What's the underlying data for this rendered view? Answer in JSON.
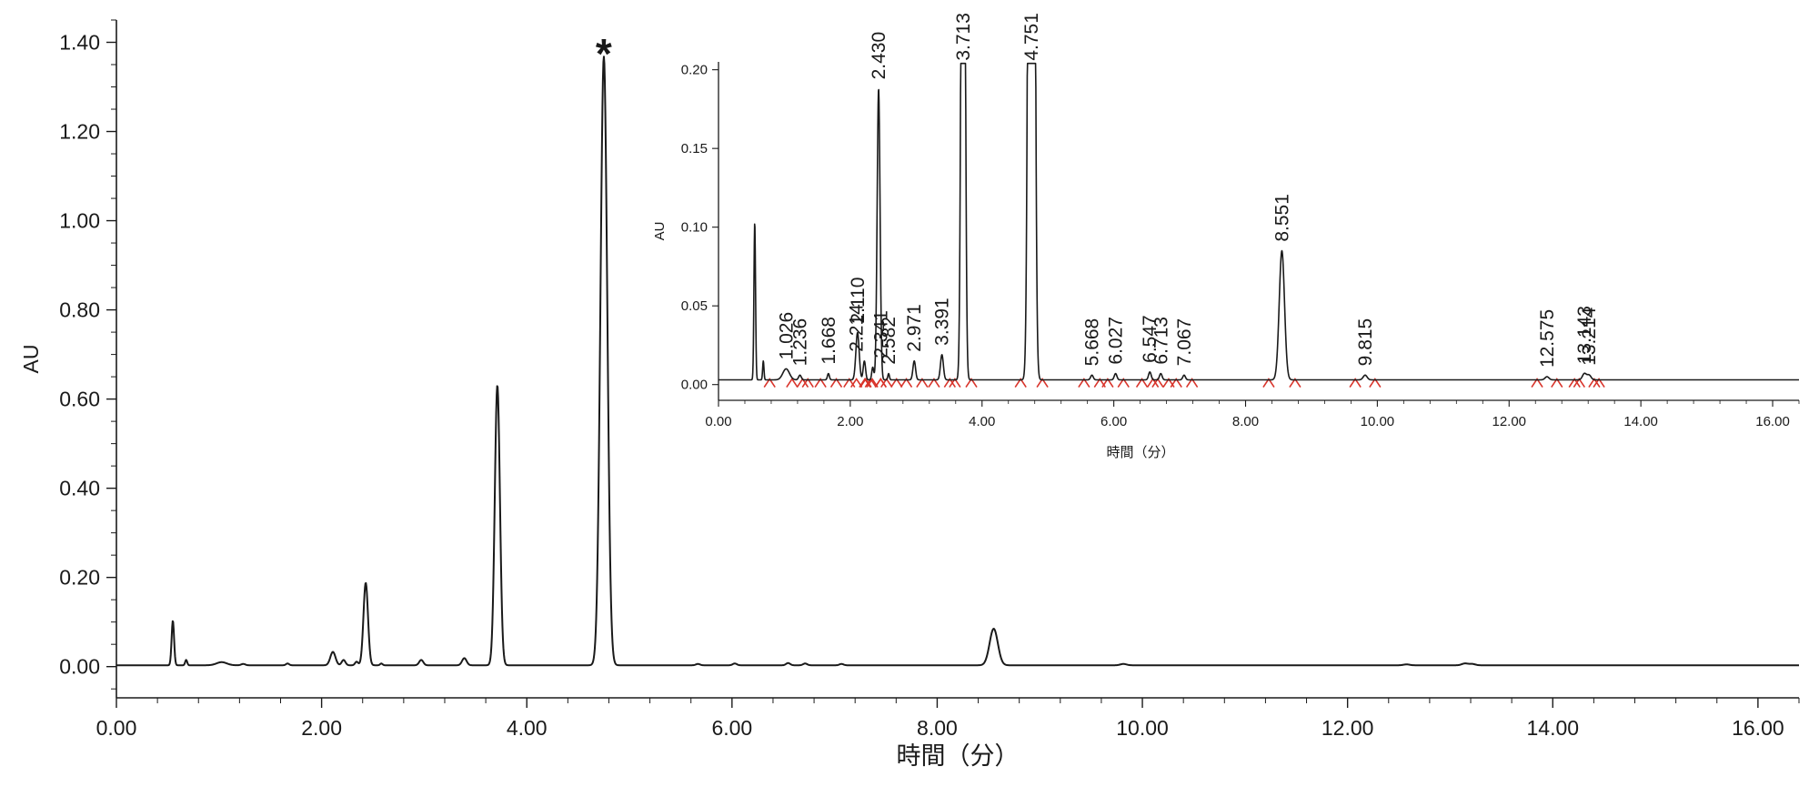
{
  "chart_data": [
    {
      "type": "line",
      "xlabel": "時間（分）",
      "ylabel": "AU",
      "xlim": [
        0,
        16.4
      ],
      "ylim": [
        -0.07,
        1.45
      ],
      "xticks": [
        "0.00",
        "2.00",
        "4.00",
        "6.00",
        "8.00",
        "10.00",
        "12.00",
        "14.00",
        "16.00"
      ],
      "yticks": [
        "0.00",
        "0.20",
        "0.40",
        "0.60",
        "0.80",
        "1.00",
        "1.20",
        "1.40"
      ],
      "grid": false,
      "annotations": [
        {
          "text": "*",
          "x": 4.75,
          "y": 1.37
        }
      ],
      "baseline": 0.003,
      "peaks": [
        {
          "rt": 0.55,
          "height": 0.1,
          "width": 0.012
        },
        {
          "rt": 0.68,
          "height": 0.012,
          "width": 0.01
        },
        {
          "rt": 1.026,
          "height": 0.007,
          "width": 0.05
        },
        {
          "rt": 1.236,
          "height": 0.003,
          "width": 0.02
        },
        {
          "rt": 1.668,
          "height": 0.004,
          "width": 0.015
        },
        {
          "rt": 2.11,
          "height": 0.03,
          "width": 0.025
        },
        {
          "rt": 2.214,
          "height": 0.012,
          "width": 0.018
        },
        {
          "rt": 2.341,
          "height": 0.008,
          "width": 0.015
        },
        {
          "rt": 2.43,
          "height": 0.185,
          "width": 0.022
        },
        {
          "rt": 2.582,
          "height": 0.004,
          "width": 0.012
        },
        {
          "rt": 2.971,
          "height": 0.012,
          "width": 0.02
        },
        {
          "rt": 3.391,
          "height": 0.016,
          "width": 0.022
        },
        {
          "rt": 3.713,
          "height": 0.628,
          "width": 0.025
        },
        {
          "rt": 4.751,
          "height": 1.365,
          "width": 0.033
        },
        {
          "rt": 5.668,
          "height": 0.003,
          "width": 0.02
        },
        {
          "rt": 6.027,
          "height": 0.004,
          "width": 0.02
        },
        {
          "rt": 6.547,
          "height": 0.005,
          "width": 0.02
        },
        {
          "rt": 6.713,
          "height": 0.004,
          "width": 0.02
        },
        {
          "rt": 7.067,
          "height": 0.003,
          "width": 0.02
        },
        {
          "rt": 8.551,
          "height": 0.082,
          "width": 0.04
        },
        {
          "rt": 9.815,
          "height": 0.003,
          "width": 0.03
        },
        {
          "rt": 12.575,
          "height": 0.002,
          "width": 0.03
        },
        {
          "rt": 13.143,
          "height": 0.004,
          "width": 0.03
        },
        {
          "rt": 13.214,
          "height": 0.003,
          "width": 0.03
        }
      ]
    },
    {
      "type": "line",
      "xlabel": "時間（分）",
      "ylabel": "AU",
      "xlim": [
        0,
        16.4
      ],
      "ylim": [
        -0.01,
        0.205
      ],
      "xticks": [
        "0.00",
        "2.00",
        "4.00",
        "6.00",
        "8.00",
        "10.00",
        "12.00",
        "14.00",
        "16.00"
      ],
      "yticks": [
        "0.00",
        "0.05",
        "0.10",
        "0.15",
        "0.20"
      ],
      "grid": false,
      "integration_marker_color": "#d9342b",
      "peak_labels": [
        {
          "text": "1.026",
          "x": 1.026
        },
        {
          "text": "1.236",
          "x": 1.236
        },
        {
          "text": "1.668",
          "x": 1.668
        },
        {
          "text": "2.110",
          "x": 2.11
        },
        {
          "text": "2.214",
          "x": 2.214
        },
        {
          "text": "2.341",
          "x": 2.341
        },
        {
          "text": "2.430",
          "x": 2.43
        },
        {
          "text": "2.582",
          "x": 2.582
        },
        {
          "text": "2.971",
          "x": 2.971
        },
        {
          "text": "3.391",
          "x": 3.391
        },
        {
          "text": "3.713",
          "x": 3.713
        },
        {
          "text": "4.751",
          "x": 4.751
        },
        {
          "text": "5.668",
          "x": 5.668
        },
        {
          "text": "6.027",
          "x": 6.027
        },
        {
          "text": "6.547",
          "x": 6.547
        },
        {
          "text": "6.713",
          "x": 6.713
        },
        {
          "text": "7.067",
          "x": 7.067
        },
        {
          "text": "8.551",
          "x": 8.551
        },
        {
          "text": "9.815",
          "x": 9.815
        },
        {
          "text": "12.575",
          "x": 12.575
        },
        {
          "text": "13.143",
          "x": 13.143
        },
        {
          "text": "13.214",
          "x": 13.214
        }
      ]
    }
  ]
}
